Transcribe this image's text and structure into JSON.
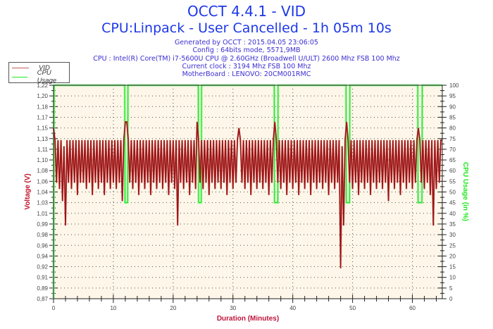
{
  "header": {
    "title": "OCCT 4.4.1 - VID",
    "subtitle": "CPU:Linpack - User Cancelled - 1h 05m 10s",
    "info": [
      "Generated by OCCT : 2015.04.05 23:06:05",
      "Config : 64bits mode, 5571,9MB",
      "CPU : Intel(R) Core(TM) i7-5600U CPU @ 2.60GHz (Broadwell U/ULT) 2600 Mhz FSB 100 Mhz",
      "Current clock : 3194 Mhz FSB 100 Mhz",
      "MotherBoard : LENOVO: 20CM001RMC"
    ]
  },
  "chart_data": {
    "type": "line",
    "title": "OCCT 4.4.1 - VID",
    "xlabel": "Duration (Minutes)",
    "ylabel": "Voltage (V)",
    "y2label": "CPU Usage (in %)",
    "xlim": [
      0,
      65
    ],
    "ylim": [
      0.87,
      1.22
    ],
    "y2lim": [
      0,
      100
    ],
    "grid": true,
    "legend_position": "top-left",
    "x_ticks": [
      "0",
      "10",
      "20",
      "30",
      "40",
      "50",
      "60"
    ],
    "y_ticks": [
      "0,87",
      "0,89",
      "0,91",
      "0,92",
      "0,94",
      "0,96",
      "0,98",
      "0,99",
      "1,01",
      "1,03",
      "1,04",
      "1,06",
      "1,08",
      "1,10",
      "1,11",
      "1,13",
      "1,15",
      "1,17",
      "1,18",
      "1,20",
      "1,22"
    ],
    "y2_ticks": [
      "0",
      "5",
      "10",
      "15",
      "20",
      "25",
      "30",
      "35",
      "40",
      "45",
      "50",
      "55",
      "60",
      "65",
      "70",
      "75",
      "80",
      "85",
      "90",
      "95",
      "100"
    ],
    "colors": {
      "vid": "#9e1414",
      "cpu": "#22e822",
      "background": "#fdf6e9"
    },
    "series": [
      {
        "name": "VID",
        "axis": "left",
        "x_step": 0.25,
        "values": [
          1.15,
          1.13,
          1.06,
          1.13,
          1.05,
          1.13,
          1.03,
          1.12,
          0.99,
          1.13,
          1.06,
          1.13,
          1.05,
          1.13,
          1.06,
          1.13,
          1.04,
          1.13,
          1.06,
          1.13,
          1.06,
          1.13,
          1.05,
          1.13,
          1.06,
          1.13,
          1.04,
          1.13,
          1.06,
          1.13,
          1.05,
          1.13,
          1.06,
          1.13,
          1.04,
          1.13,
          1.06,
          1.13,
          1.05,
          1.13,
          1.06,
          1.13,
          1.05,
          1.13,
          1.06,
          1.13,
          1.03,
          1.13,
          1.16,
          1.16,
          1.13,
          1.06,
          1.13,
          1.05,
          1.13,
          1.06,
          1.13,
          1.04,
          1.13,
          1.06,
          1.13,
          1.05,
          1.13,
          1.06,
          1.13,
          1.04,
          1.13,
          1.06,
          1.13,
          1.05,
          1.13,
          1.06,
          1.13,
          1.05,
          1.13,
          1.06,
          1.13,
          1.04,
          1.13,
          1.06,
          1.13,
          1.05,
          1.13,
          0.99,
          1.13,
          1.06,
          1.13,
          1.05,
          1.13,
          1.06,
          1.13,
          1.04,
          1.13,
          1.06,
          1.13,
          1.05,
          1.16,
          1.13,
          1.06,
          1.13,
          1.05,
          1.13,
          1.06,
          1.13,
          1.04,
          1.13,
          1.06,
          1.13,
          1.05,
          1.13,
          1.06,
          1.13,
          1.05,
          1.13,
          1.06,
          1.13,
          1.04,
          1.13,
          1.06,
          1.13,
          1.05,
          1.13,
          1.06,
          1.13,
          1.15,
          1.13,
          1.06,
          1.13,
          1.05,
          1.13,
          1.06,
          1.13,
          1.04,
          1.13,
          1.06,
          1.13,
          1.05,
          1.13,
          1.06,
          1.13,
          1.05,
          1.13,
          1.06,
          1.13,
          1.04,
          1.13,
          1.06,
          1.13,
          1.16,
          1.13,
          1.06,
          1.13,
          1.05,
          1.13,
          1.06,
          1.13,
          1.04,
          1.13,
          1.06,
          1.13,
          1.05,
          1.13,
          1.06,
          1.13,
          1.04,
          1.13,
          1.06,
          1.13,
          1.05,
          1.13,
          1.06,
          1.13,
          1.04,
          1.13,
          1.06,
          1.13,
          1.05,
          1.13,
          1.06,
          1.13,
          1.05,
          1.13,
          1.06,
          1.13,
          1.04,
          1.13,
          1.06,
          1.13,
          1.05,
          1.13,
          1.06,
          1.13,
          0.92,
          1.12,
          0.99,
          1.13,
          1.16,
          1.13,
          1.06,
          1.13,
          1.05,
          1.13,
          1.06,
          1.13,
          1.04,
          1.13,
          1.06,
          1.13,
          1.05,
          1.13,
          1.06,
          1.13,
          1.04,
          1.13,
          1.06,
          1.13,
          1.05,
          1.13,
          1.06,
          1.13,
          1.05,
          1.13,
          1.06,
          1.13,
          1.03,
          1.13,
          1.06,
          1.13,
          1.05,
          1.13,
          1.06,
          1.13,
          1.04,
          1.13,
          1.06,
          1.13,
          1.05,
          1.13,
          1.06,
          1.13,
          1.05,
          1.13,
          1.06,
          1.13,
          1.15,
          1.13,
          1.06,
          1.13,
          1.05,
          1.13,
          1.06,
          1.13,
          1.04,
          1.13,
          0.99,
          1.13,
          1.05,
          1.13,
          1.06,
          1.13,
          1.13
        ]
      },
      {
        "name": "CPU Usage",
        "axis": "right",
        "points": [
          [
            0,
            0
          ],
          [
            0.1,
            100
          ],
          [
            11.9,
            100
          ],
          [
            11.95,
            45
          ],
          [
            12.4,
            45
          ],
          [
            12.45,
            100
          ],
          [
            24.2,
            100
          ],
          [
            24.25,
            45
          ],
          [
            24.7,
            45
          ],
          [
            24.75,
            100
          ],
          [
            36.9,
            100
          ],
          [
            36.95,
            45
          ],
          [
            37.5,
            45
          ],
          [
            37.55,
            100
          ],
          [
            48.9,
            100
          ],
          [
            48.95,
            45
          ],
          [
            49.5,
            45
          ],
          [
            49.55,
            100
          ],
          [
            60.9,
            100
          ],
          [
            60.95,
            45
          ],
          [
            61.6,
            45
          ],
          [
            61.65,
            100
          ],
          [
            65,
            100
          ]
        ]
      }
    ]
  }
}
